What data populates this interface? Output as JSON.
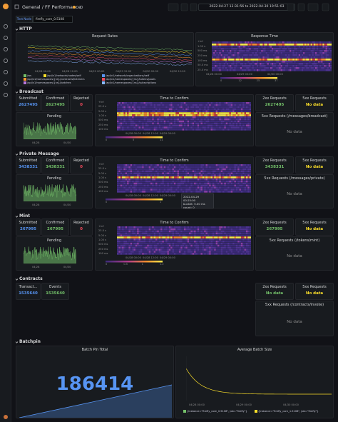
{
  "header": {
    "root": "General",
    "separator": "/",
    "title": "FF Performance",
    "time_range": "2022-04-27 13:31:56 to 2022-04-30 19:51:03"
  },
  "variables": {
    "label": "Test Node",
    "value": "firefly_core_0.5108"
  },
  "http": {
    "title": "HTTP",
    "request_rates": {
      "title": "Request Rates",
      "x_ticks": [
        "04/28 00:00",
        "04/28 12:00",
        "04/29 00:00",
        "04/29 12:00",
        "04/30 00:00",
        "04/30 12:00"
      ],
      "legend": [
        "/ws",
        "/api/v1/network/nodes/self",
        "/api/v1/network/organizations/self",
        "/api/v1/namespaces/{ns}/contracts/listeners",
        "/api/v1/namespaces/{ns}/tokens/pools",
        "/api/v1/namespaces/{ns}/batches",
        "/api/v1/namespaces/{ns}/subscriptions"
      ]
    },
    "response_time": {
      "title": "Response Time",
      "y_ticks": [
        "+Inf",
        "1.00 s",
        "500 ms",
        "250 ms",
        "100 ms",
        "50.0 ms",
        "25.0 ms"
      ],
      "x_ticks": [
        "04/28 00:00",
        "04/29 00:00",
        "04/30 00:00"
      ],
      "scale": [
        "0",
        "12",
        "25",
        "37"
      ]
    }
  },
  "broadcast": {
    "title": "Broadcast",
    "submitted_label": "Submitted",
    "submitted": 2627495,
    "confirmed_label": "Confirmed",
    "confirmed": 2627495,
    "rejected_label": "Rejected",
    "rejected": 0,
    "pending": {
      "title": "Pending",
      "x_ticks": [
        "04/28",
        "04/30"
      ]
    },
    "time_to_confirm": {
      "title": "Time to Confirm",
      "y_ticks": [
        "+Inf",
        "25.0 s",
        "5.00 s",
        "1.00 s",
        "500 ms",
        "250 ms",
        "100 ms"
      ],
      "x_ticks": [
        "04/28 00:00",
        "04/28 12:00",
        "04/29 00:00"
      ],
      "scale": [
        "0",
        "5",
        "11"
      ]
    },
    "ok_label": "2xx Requests",
    "ok": 2627495,
    "err_label": "5xx Requests",
    "err": "No data",
    "err_detail": {
      "title": "5xx Requests (/messages/broadcast)",
      "value": "No data"
    }
  },
  "private_message": {
    "title": "Private Message",
    "submitted_label": "Submitted",
    "submitted": 3438331,
    "confirmed_label": "Confirmed",
    "confirmed": 3438331,
    "rejected_label": "Rejected",
    "rejected": 0,
    "pending": {
      "title": "Pending",
      "x_ticks": [
        "04/28",
        "04/30"
      ]
    },
    "time_to_confirm": {
      "title": "Time to Confirm",
      "y_ticks": [
        "+Inf",
        "25.0 s",
        "5.00 s",
        "1.00 s",
        "500 ms",
        "250 ms",
        "100 ms"
      ],
      "x_ticks": [
        "04/28 00:00",
        "04/28 12:00",
        "04/29 00:00"
      ],
      "scale": [
        "0",
        "1"
      ],
      "tooltip": {
        "time": "2022-04-29 00:25:00",
        "bucket": "bucket: 5.00 ms",
        "count": "count: 0"
      }
    },
    "ok_label": "2xx Requests",
    "ok": 3438331,
    "err_label": "5xx Requests",
    "err": "No data",
    "err_detail": {
      "title": "5xx Requests (/messages/private)",
      "value": "No data"
    }
  },
  "mint": {
    "title": "Mint",
    "submitted_label": "Submitted",
    "submitted": 267995,
    "confirmed_label": "Confirmed",
    "confirmed": 267995,
    "rejected_label": "Rejected",
    "rejected": 0,
    "pending": {
      "title": "Pending",
      "x_ticks": [
        "04/28",
        "04/30"
      ]
    },
    "time_to_confirm": {
      "title": "Time to Confirm",
      "y_ticks": [
        "+Inf",
        "25.0 s",
        "5.00 s",
        "1.00 s",
        "500 ms",
        "250 ms",
        "100 ms"
      ],
      "x_ticks": [
        "04/28 00:00",
        "04/28 12:00",
        "04/29 00:00"
      ],
      "scale": [
        "0",
        "0.5",
        "1",
        "1.2"
      ]
    },
    "ok_label": "2xx Requests",
    "ok": 267995,
    "err_label": "5xx Requests",
    "err": "No data",
    "err_detail": {
      "title": "5xx Requests (/tokens/mint)",
      "value": "No data"
    }
  },
  "contracts": {
    "title": "Contracts",
    "transactions_label": "Transact...",
    "transactions": 1535640,
    "events_label": "Events",
    "events": 1535640,
    "ok_label": "2xx Requests",
    "ok": "No data",
    "err_label": "5xx Requests",
    "err": "No data",
    "err_detail": {
      "title": "5xx Requests (/contracts/invoke)",
      "value": "No data"
    }
  },
  "batchpin": {
    "title": "Batchpin",
    "total": {
      "title": "Batch Pin Total",
      "value": 186414
    },
    "average": {
      "title": "Average Batch Size",
      "x_ticks": [
        "04/28 00:00",
        "04/29 00:00",
        "04/30 00:00"
      ],
      "legend": [
        "{instance=\"firefly_core_0.5108\", job=\"firefly\"}",
        "{instance=\"firefly_core_1.5108\", job=\"firefly\"}"
      ]
    }
  }
}
